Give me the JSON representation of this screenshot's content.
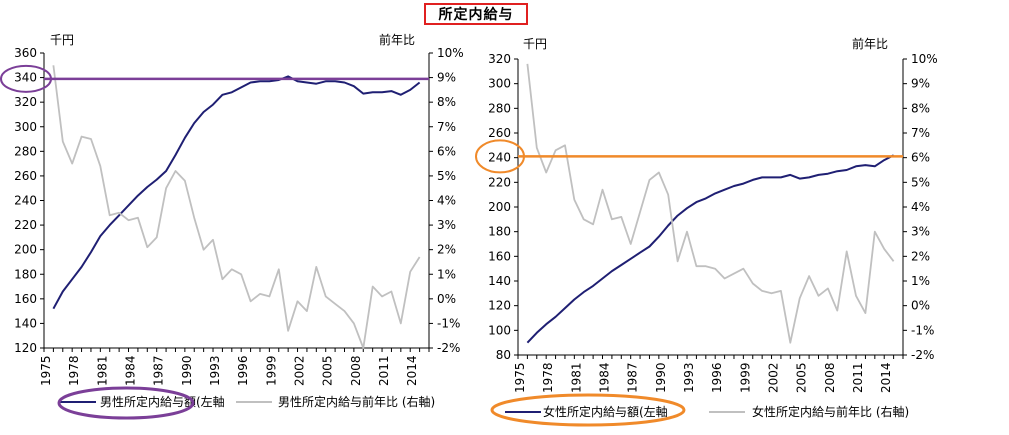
{
  "page_title": "所定内給与",
  "chart_data": [
    {
      "type": "line",
      "left_unit": "千円",
      "right_unit": "前年比",
      "ylim_left": [
        120,
        360
      ],
      "ylim_right": [
        -2,
        10
      ],
      "left_ticks": [
        120,
        140,
        160,
        180,
        200,
        220,
        240,
        260,
        280,
        300,
        320,
        340,
        360
      ],
      "right_ticks": [
        "-2%",
        "-1%",
        "0%",
        "1%",
        "2%",
        "3%",
        "4%",
        "5%",
        "6%",
        "7%",
        "8%",
        "9%",
        "10%"
      ],
      "x_tick_labels": [
        "1975",
        "1978",
        "1981",
        "1984",
        "1987",
        "1990",
        "1993",
        "1996",
        "1999",
        "2002",
        "2005",
        "2008",
        "2011",
        "2014"
      ],
      "highlight_value": 339,
      "series": [
        {
          "name": "男性所定内給与額(左軸",
          "axis": "left",
          "color": "#1f1f73",
          "x": [
            1976,
            1977,
            1978,
            1979,
            1980,
            1981,
            1982,
            1983,
            1984,
            1985,
            1986,
            1987,
            1988,
            1989,
            1990,
            1991,
            1992,
            1993,
            1994,
            1995,
            1996,
            1997,
            1998,
            1999,
            2000,
            2001,
            2002,
            2003,
            2004,
            2005,
            2006,
            2007,
            2008,
            2009,
            2010,
            2011,
            2012,
            2013,
            2014,
            2015
          ],
          "values": [
            152,
            166,
            176,
            186,
            198,
            211,
            220,
            228,
            236,
            244,
            251,
            257,
            264,
            277,
            291,
            303,
            312,
            318,
            326,
            328,
            332,
            336,
            337,
            337,
            338,
            341,
            337,
            336,
            335,
            337,
            337,
            336,
            333,
            327,
            328,
            328,
            329,
            326,
            330,
            336
          ]
        },
        {
          "name": "男性所定内給与前年比 (右軸)",
          "axis": "right",
          "color": "#c0c0c0",
          "x": [
            1976,
            1977,
            1978,
            1979,
            1980,
            1981,
            1982,
            1983,
            1984,
            1985,
            1986,
            1987,
            1988,
            1989,
            1990,
            1991,
            1992,
            1993,
            1994,
            1995,
            1996,
            1997,
            1998,
            1999,
            2000,
            2001,
            2002,
            2003,
            2004,
            2005,
            2006,
            2007,
            2008,
            2009,
            2010,
            2011,
            2012,
            2013,
            2014,
            2015
          ],
          "values": [
            9.5,
            6.4,
            5.5,
            6.6,
            6.5,
            5.4,
            3.4,
            3.5,
            3.2,
            3.3,
            2.1,
            2.5,
            4.5,
            5.2,
            4.8,
            3.3,
            2.0,
            2.4,
            0.8,
            1.2,
            1.0,
            -0.1,
            0.2,
            0.1,
            1.2,
            -1.3,
            -0.1,
            -0.5,
            1.3,
            0.1,
            -0.2,
            -0.5,
            -1.0,
            -2.0,
            0.5,
            0.1,
            0.3,
            -1.0,
            1.1,
            1.7
          ]
        }
      ]
    },
    {
      "type": "line",
      "left_unit": "千円",
      "right_unit": "前年比",
      "ylim_left": [
        80,
        320
      ],
      "ylim_right": [
        -2,
        10
      ],
      "left_ticks": [
        80,
        100,
        120,
        140,
        160,
        180,
        200,
        220,
        240,
        260,
        280,
        300,
        320
      ],
      "right_ticks": [
        "-2%",
        "-1%",
        "0%",
        "1%",
        "2%",
        "3%",
        "4%",
        "5%",
        "6%",
        "7%",
        "8%",
        "9%",
        "10%"
      ],
      "x_tick_labels": [
        "1975",
        "1978",
        "1981",
        "1984",
        "1987",
        "1990",
        "1993",
        "1996",
        "1999",
        "2002",
        "2005",
        "2008",
        "2011",
        "2014"
      ],
      "highlight_value": 241,
      "series": [
        {
          "name": "女性所定内給与額(左軸",
          "axis": "left",
          "color": "#1f1f73",
          "x": [
            1976,
            1977,
            1978,
            1979,
            1980,
            1981,
            1982,
            1983,
            1984,
            1985,
            1986,
            1987,
            1988,
            1989,
            1990,
            1991,
            1992,
            1993,
            1994,
            1995,
            1996,
            1997,
            1998,
            1999,
            2000,
            2001,
            2002,
            2003,
            2004,
            2005,
            2006,
            2007,
            2008,
            2009,
            2010,
            2011,
            2012,
            2013,
            2014,
            2015
          ],
          "values": [
            90,
            98,
            105,
            111,
            118,
            125,
            131,
            136,
            142,
            148,
            153,
            158,
            163,
            168,
            176,
            185,
            193,
            199,
            204,
            207,
            211,
            214,
            217,
            219,
            222,
            224,
            224,
            224,
            226,
            223,
            224,
            226,
            227,
            229,
            230,
            233,
            234,
            233,
            238,
            242
          ]
        },
        {
          "name": "女性所定内給与前年比 (右軸)",
          "axis": "right",
          "color": "#c0c0c0",
          "x": [
            1976,
            1977,
            1978,
            1979,
            1980,
            1981,
            1982,
            1983,
            1984,
            1985,
            1986,
            1987,
            1988,
            1989,
            1990,
            1991,
            1992,
            1993,
            1994,
            1995,
            1996,
            1997,
            1998,
            1999,
            2000,
            2001,
            2002,
            2003,
            2004,
            2005,
            2006,
            2007,
            2008,
            2009,
            2010,
            2011,
            2012,
            2013,
            2014,
            2015
          ],
          "values": [
            9.8,
            6.4,
            5.4,
            6.3,
            6.5,
            4.3,
            3.5,
            3.3,
            4.7,
            3.5,
            3.6,
            2.5,
            3.8,
            5.1,
            5.4,
            4.5,
            1.8,
            3.0,
            1.6,
            1.6,
            1.5,
            1.1,
            1.3,
            1.5,
            0.9,
            0.6,
            0.5,
            0.6,
            -1.5,
            0.3,
            1.2,
            0.4,
            0.7,
            -0.2,
            2.2,
            0.4,
            -0.3,
            3.0,
            2.3,
            1.8
          ]
        }
      ]
    }
  ]
}
